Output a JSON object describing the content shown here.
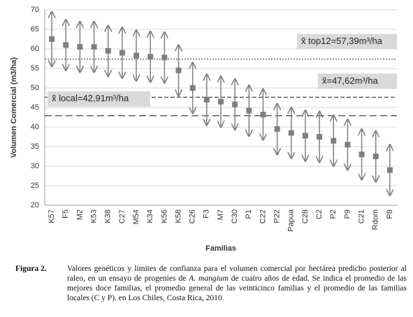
{
  "chart_data": {
    "type": "errorbar",
    "y_label": "Volumen Comercial (m3/ha)",
    "x_label": "Familias",
    "categories": [
      "K57",
      "F5",
      "M2",
      "K53",
      "K38",
      "C27",
      "M54",
      "K34",
      "K56",
      "K58",
      "C26",
      "F3",
      "M7",
      "C30",
      "P1",
      "C22",
      "P22",
      "Papua",
      "C28",
      "C2",
      "P2",
      "P9",
      "C21",
      "Rdom",
      "P8"
    ],
    "values": [
      62.5,
      61,
      60.5,
      60.5,
      59.5,
      59,
      58.3,
      58,
      57.8,
      54.5,
      50,
      47,
      46.5,
      45.8,
      44.2,
      43.2,
      39.5,
      38.5,
      37.8,
      37.5,
      36.5,
      35.5,
      33,
      32.5,
      29
    ],
    "errors": [
      7,
      6.5,
      6.5,
      6.5,
      6.5,
      6.5,
      6.5,
      6.5,
      6.5,
      6.5,
      6.5,
      6.5,
      6.5,
      6.5,
      6.5,
      6.5,
      6.5,
      6.5,
      6.5,
      6.5,
      6.5,
      6.5,
      6.5,
      6.5,
      6.5
    ],
    "color": "#7f7f7f",
    "ylim": [
      20,
      70
    ],
    "yticks": [
      20,
      25,
      30,
      35,
      40,
      45,
      50,
      55,
      60,
      65,
      70
    ],
    "grid": true,
    "reference_lines": [
      {
        "value": 57.39,
        "label": "x̃ top12=57,39m³/ha",
        "style": "dotted"
      },
      {
        "value": 47.62,
        "label": "x̃=47,62m³/ha",
        "style": "dashed"
      },
      {
        "value": 42.91,
        "label": "x̃ local=42,91m³/ha",
        "style": "longdash"
      }
    ]
  },
  "caption": {
    "label": "Figura 2.",
    "text_before": "Valores genéticos y límites de confianza para el volumen comercial por hectárea predicho posterior al raleo, en un ensayo de progenies de ",
    "text_italic": "A. mangium",
    "text_after": " de cuatro años de edad. Se indica el promedio de las mejores doce familias, el promedio general de las veinticinco familias y el promedio de las familias locales (C y P). en Los Chiles, Costa Rica, 2010."
  }
}
